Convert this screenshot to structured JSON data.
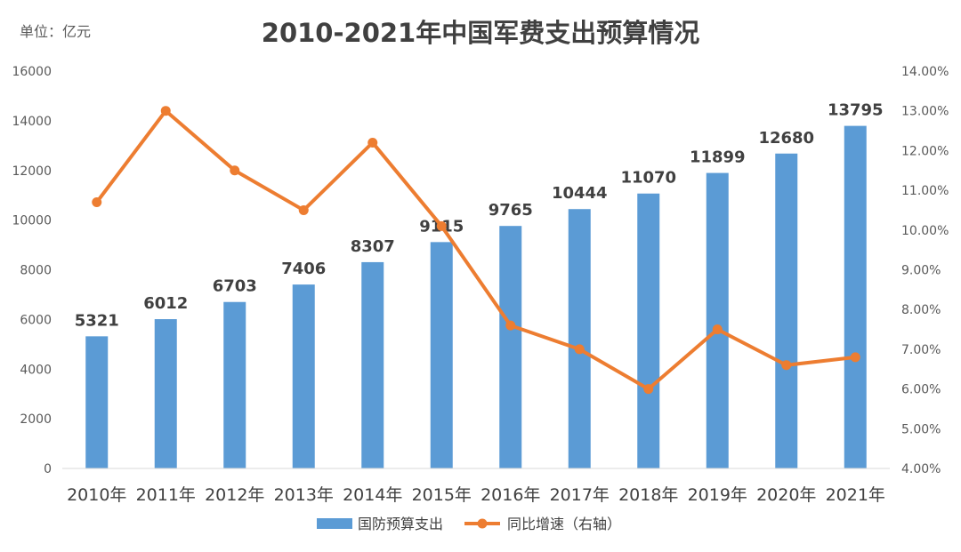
{
  "unit_label": "单位：亿元",
  "chart_data": {
    "type": "bar",
    "title": "2010-2021年中国军费支出预算情况",
    "categories": [
      "2010年",
      "2011年",
      "2012年",
      "2013年",
      "2014年",
      "2015年",
      "2016年",
      "2017年",
      "2018年",
      "2019年",
      "2020年",
      "2021年"
    ],
    "series": [
      {
        "name": "国防预算支出",
        "type": "bar",
        "axis": "left",
        "color": "#5B9BD5",
        "values": [
          5321,
          6012,
          6703,
          7406,
          8307,
          9115,
          9765,
          10444,
          11070,
          11899,
          12680,
          13795
        ],
        "labels": [
          "5321",
          "6012",
          "6703",
          "7406",
          "8307",
          "9115",
          "9765",
          "10444",
          "11070",
          "11899",
          "12680",
          "13795"
        ]
      },
      {
        "name": "同比增速（右轴）",
        "type": "line",
        "axis": "right",
        "color": "#ED7D31",
        "values": [
          10.7,
          13.0,
          11.5,
          10.5,
          12.2,
          10.1,
          7.6,
          7.0,
          6.0,
          7.5,
          6.6,
          6.8
        ]
      }
    ],
    "y_left": {
      "min": 0,
      "max": 16000,
      "ticks": [
        "0",
        "2000",
        "4000",
        "6000",
        "8000",
        "10000",
        "12000",
        "14000",
        "16000"
      ]
    },
    "y_right": {
      "min": 4,
      "max": 14,
      "ticks": [
        "4.00%",
        "5.00%",
        "6.00%",
        "7.00%",
        "8.00%",
        "9.00%",
        "10.00%",
        "11.00%",
        "12.00%",
        "13.00%",
        "14.00%"
      ]
    },
    "grid": false,
    "legend_position": "bottom"
  }
}
